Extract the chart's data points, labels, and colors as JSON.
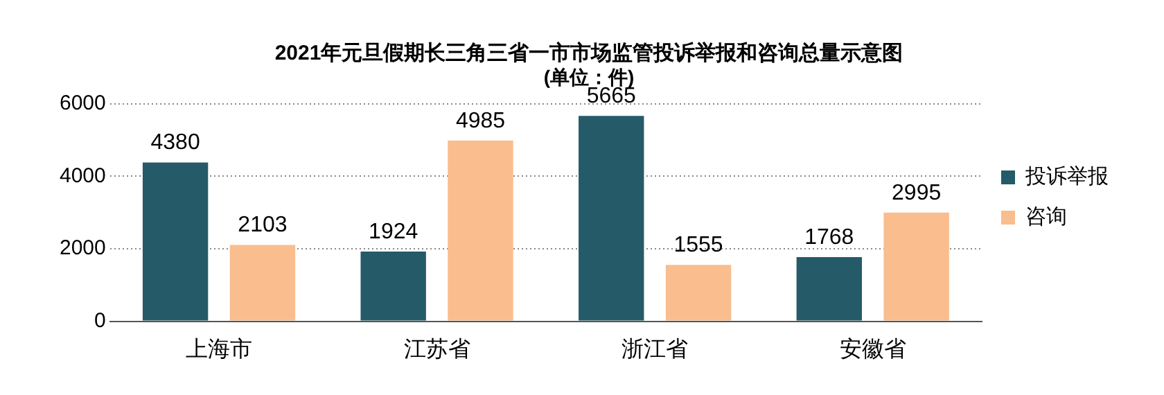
{
  "chart_data": {
    "type": "bar",
    "title": "2021年元旦假期长三角三省一市市场监管投诉举报和咨询总量示意图",
    "subtitle": "(单位：件)",
    "categories": [
      "上海市",
      "江苏省",
      "浙江省",
      "安徽省"
    ],
    "series": [
      {
        "name": "投诉举报",
        "color": "#255a69",
        "values": [
          4380,
          1924,
          5665,
          1768
        ]
      },
      {
        "name": "咨询",
        "color": "#f9bd8e",
        "values": [
          2103,
          4985,
          1555,
          2995
        ]
      }
    ],
    "ylim": [
      0,
      6000
    ],
    "yticks": [
      0,
      2000,
      4000,
      6000
    ],
    "grid": "y",
    "legend": "right",
    "data_labels": true
  }
}
